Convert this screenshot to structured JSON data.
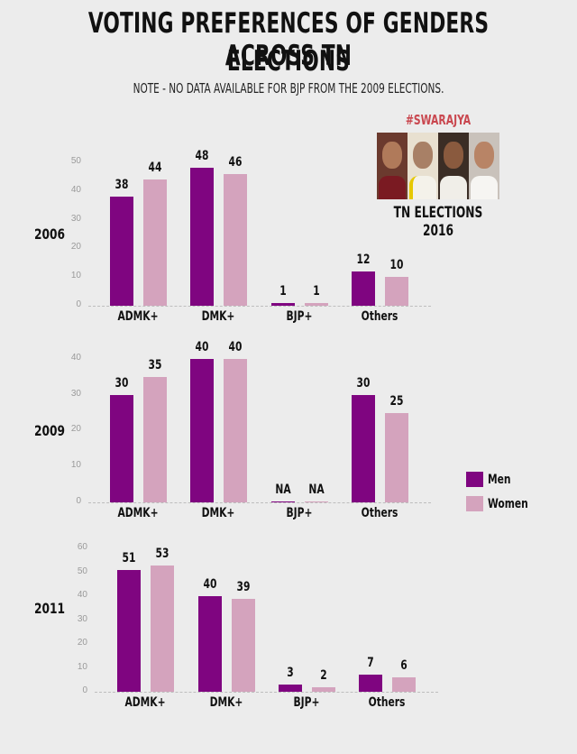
{
  "header": {
    "title_line1": "VOTING PREFERENCES OF GENDERS ACROSS TN",
    "title_line2": "ELECTIONS",
    "note": "NOTE - NO DATA AVAILABLE FOR BJP FROM THE 2009 ELECTIONS."
  },
  "badge": {
    "brand": "#SWARAJYA",
    "caption": "TN ELECTIONS 2016",
    "photo_count": 4
  },
  "legend": [
    {
      "label": "Men",
      "color": "#7f0580"
    },
    {
      "label": "Women",
      "color": "#d4a3bd"
    }
  ],
  "colors": {
    "men": "#7f0580",
    "women": "#d4a3bd",
    "background": "#ececec"
  },
  "chart_data": [
    {
      "type": "bar",
      "title": "2006",
      "categories": [
        "ADMK+",
        "DMK+",
        "BJP+",
        "Others"
      ],
      "series": [
        {
          "name": "Men",
          "values": [
            38,
            48,
            1,
            12
          ],
          "labels": [
            "38",
            "48",
            "1",
            "12"
          ]
        },
        {
          "name": "Women",
          "values": [
            44,
            46,
            1,
            10
          ],
          "labels": [
            "44",
            "46",
            "1",
            "10"
          ]
        }
      ],
      "yticks": [
        "0",
        "10",
        "20",
        "30",
        "40",
        "50"
      ],
      "ylim": [
        0,
        50
      ],
      "grid": false
    },
    {
      "type": "bar",
      "title": "2009",
      "categories": [
        "ADMK+",
        "DMK+",
        "BJP+",
        "Others"
      ],
      "series": [
        {
          "name": "Men",
          "values": [
            30,
            40,
            null,
            30
          ],
          "labels": [
            "30",
            "40",
            "NA",
            "30"
          ]
        },
        {
          "name": "Women",
          "values": [
            35,
            40,
            null,
            25
          ],
          "labels": [
            "35",
            "40",
            "NA",
            "25"
          ]
        }
      ],
      "yticks": [
        "0",
        "10",
        "20",
        "30",
        "40"
      ],
      "ylim": [
        0,
        40
      ],
      "grid": false,
      "legend_position": "right"
    },
    {
      "type": "bar",
      "title": "2011",
      "categories": [
        "ADMK+",
        "DMK+",
        "BJP+",
        "Others"
      ],
      "series": [
        {
          "name": "Men",
          "values": [
            51,
            40,
            3,
            7
          ],
          "labels": [
            "51",
            "40",
            "3",
            "7"
          ]
        },
        {
          "name": "Women",
          "values": [
            53,
            39,
            2,
            6
          ],
          "labels": [
            "53",
            "39",
            "2",
            "6"
          ]
        }
      ],
      "yticks": [
        "0",
        "10",
        "20",
        "30",
        "40",
        "50",
        "60"
      ],
      "ylim": [
        0,
        60
      ],
      "grid": false
    }
  ]
}
